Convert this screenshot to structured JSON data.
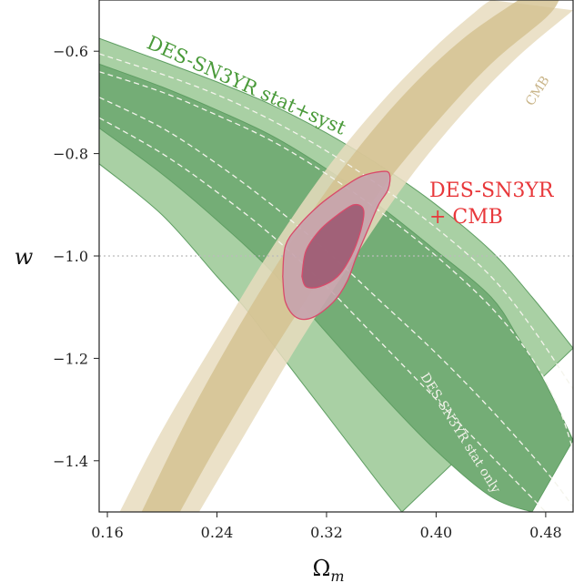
{
  "chart_data": {
    "type": "contour",
    "xlabel": "Ω",
    "xlabel_sub": "m",
    "ylabel": "w",
    "xlim": [
      0.154,
      0.5
    ],
    "ylim": [
      -1.5,
      -0.5
    ],
    "x_ticks": [
      0.16,
      0.24,
      0.32,
      0.4,
      0.48
    ],
    "x_tick_labels": [
      "0.16",
      "0.24",
      "0.32",
      "0.40",
      "0.48"
    ],
    "y_ticks": [
      -0.6,
      -0.8,
      -1.0,
      -1.2,
      -1.4
    ],
    "y_tick_labels": [
      "−0.6",
      "−0.8",
      "−1.0",
      "−1.2",
      "−1.4"
    ],
    "reference_line": {
      "y": -1.0,
      "style": "dotted",
      "color": "#bbbbbb"
    },
    "colors": {
      "sn_outer": "#a9d0a4",
      "sn_inner": "#74ad76",
      "sn_edge": "#5f9e63",
      "cmb_outer": "#e8dcbe",
      "cmb_inner": "#d3c18f",
      "combined_outer": "#c7a3ad",
      "combined_inner": "#9c5a72",
      "combined_edge": "#d94a6a",
      "dashed": "#f4f4ec"
    },
    "series": [
      {
        "name": "DES-SN3YR stat+syst",
        "kind": "band",
        "label_color": "#4a9a3a",
        "outer_upper": [
          [
            0.154,
            -0.575
          ],
          [
            0.2,
            -0.62
          ],
          [
            0.24,
            -0.66
          ],
          [
            0.28,
            -0.705
          ],
          [
            0.32,
            -0.76
          ],
          [
            0.36,
            -0.825
          ],
          [
            0.4,
            -0.9
          ],
          [
            0.44,
            -0.99
          ],
          [
            0.47,
            -1.08
          ],
          [
            0.5,
            -1.18
          ]
        ],
        "outer_lower": [
          [
            0.154,
            -0.82
          ],
          [
            0.2,
            -0.92
          ],
          [
            0.24,
            -1.04
          ],
          [
            0.26,
            -1.1
          ],
          [
            0.28,
            -1.17
          ],
          [
            0.3,
            -1.24
          ],
          [
            0.32,
            -1.31
          ],
          [
            0.34,
            -1.38
          ],
          [
            0.36,
            -1.45
          ],
          [
            0.375,
            -1.5
          ]
        ],
        "inner_upper": [
          [
            0.154,
            -0.625
          ],
          [
            0.2,
            -0.67
          ],
          [
            0.24,
            -0.715
          ],
          [
            0.28,
            -0.765
          ],
          [
            0.32,
            -0.83
          ],
          [
            0.36,
            -0.905
          ],
          [
            0.4,
            -0.99
          ],
          [
            0.44,
            -1.08
          ],
          [
            0.46,
            -1.16
          ],
          [
            0.48,
            -1.25
          ],
          [
            0.5,
            -1.36
          ]
        ],
        "inner_lower": [
          [
            0.154,
            -0.75
          ],
          [
            0.2,
            -0.84
          ],
          [
            0.24,
            -0.93
          ],
          [
            0.28,
            -1.03
          ],
          [
            0.32,
            -1.15
          ],
          [
            0.36,
            -1.27
          ],
          [
            0.4,
            -1.38
          ],
          [
            0.44,
            -1.47
          ],
          [
            0.47,
            -1.5
          ]
        ]
      },
      {
        "name": "DES-SN3YR stat only",
        "kind": "dashed",
        "label_color": "#f2f2ea",
        "outer_upper": [
          [
            0.154,
            -0.605
          ],
          [
            0.2,
            -0.645
          ],
          [
            0.24,
            -0.685
          ],
          [
            0.28,
            -0.735
          ],
          [
            0.32,
            -0.795
          ],
          [
            0.36,
            -0.865
          ],
          [
            0.4,
            -0.945
          ],
          [
            0.44,
            -1.04
          ],
          [
            0.47,
            -1.14
          ],
          [
            0.5,
            -1.26
          ]
        ],
        "outer_lower": [
          [
            0.154,
            -0.73
          ],
          [
            0.2,
            -0.8
          ],
          [
            0.24,
            -0.875
          ],
          [
            0.28,
            -0.96
          ],
          [
            0.32,
            -1.06
          ],
          [
            0.36,
            -1.17
          ],
          [
            0.4,
            -1.28
          ],
          [
            0.44,
            -1.39
          ],
          [
            0.48,
            -1.5
          ]
        ],
        "inner_upper": [
          [
            0.154,
            -0.64
          ],
          [
            0.2,
            -0.68
          ],
          [
            0.24,
            -0.725
          ],
          [
            0.28,
            -0.775
          ],
          [
            0.32,
            -0.84
          ],
          [
            0.36,
            -0.915
          ],
          [
            0.4,
            -1.0
          ],
          [
            0.44,
            -1.1
          ],
          [
            0.47,
            -1.2
          ],
          [
            0.49,
            -1.3
          ],
          [
            0.5,
            -1.38
          ]
        ],
        "inner_lower": [
          [
            0.154,
            -0.69
          ],
          [
            0.2,
            -0.75
          ],
          [
            0.24,
            -0.82
          ],
          [
            0.28,
            -0.9
          ],
          [
            0.32,
            -0.99
          ],
          [
            0.36,
            -1.09
          ],
          [
            0.4,
            -1.19
          ],
          [
            0.44,
            -1.3
          ],
          [
            0.48,
            -1.42
          ],
          [
            0.5,
            -1.49
          ]
        ]
      },
      {
        "name": "CMB",
        "kind": "band",
        "label_color": "#c9b589",
        "outer_left": [
          [
            0.169,
            -1.5
          ],
          [
            0.2,
            -1.34
          ],
          [
            0.24,
            -1.16
          ],
          [
            0.28,
            -0.985
          ],
          [
            0.32,
            -0.83
          ],
          [
            0.36,
            -0.7
          ],
          [
            0.4,
            -0.59
          ],
          [
            0.43,
            -0.52
          ],
          [
            0.44,
            -0.5
          ]
        ],
        "outer_right": [
          [
            0.227,
            -1.5
          ],
          [
            0.26,
            -1.35
          ],
          [
            0.3,
            -1.17
          ],
          [
            0.34,
            -1.005
          ],
          [
            0.38,
            -0.85
          ],
          [
            0.42,
            -0.72
          ],
          [
            0.46,
            -0.61
          ],
          [
            0.5,
            -0.52
          ]
        ],
        "inner_left": [
          [
            0.185,
            -1.5
          ],
          [
            0.22,
            -1.31
          ],
          [
            0.26,
            -1.12
          ],
          [
            0.3,
            -0.95
          ],
          [
            0.34,
            -0.8
          ],
          [
            0.38,
            -0.675
          ],
          [
            0.42,
            -0.575
          ],
          [
            0.46,
            -0.5
          ]
        ],
        "inner_right": [
          [
            0.213,
            -1.5
          ],
          [
            0.24,
            -1.37
          ],
          [
            0.28,
            -1.19
          ],
          [
            0.32,
            -1.025
          ],
          [
            0.36,
            -0.87
          ],
          [
            0.4,
            -0.74
          ],
          [
            0.44,
            -0.625
          ],
          [
            0.48,
            -0.535
          ],
          [
            0.49,
            -0.5
          ]
        ]
      },
      {
        "name": "DES-SN3YR + CMB",
        "label_lines": [
          "DES-SN3YR",
          "+ CMB"
        ],
        "kind": "blob",
        "label_color": "#e8383b",
        "outer": [
          [
            0.288,
            -1.04
          ],
          [
            0.29,
            -0.98
          ],
          [
            0.3,
            -0.94
          ],
          [
            0.315,
            -0.9
          ],
          [
            0.33,
            -0.87
          ],
          [
            0.345,
            -0.845
          ],
          [
            0.36,
            -0.835
          ],
          [
            0.366,
            -0.84
          ],
          [
            0.365,
            -0.87
          ],
          [
            0.358,
            -0.9
          ],
          [
            0.35,
            -0.95
          ],
          [
            0.342,
            -1.0
          ],
          [
            0.335,
            -1.05
          ],
          [
            0.325,
            -1.09
          ],
          [
            0.31,
            -1.12
          ],
          [
            0.298,
            -1.12
          ],
          [
            0.29,
            -1.09
          ]
        ],
        "inner": [
          [
            0.302,
            -1.04
          ],
          [
            0.305,
            -0.99
          ],
          [
            0.315,
            -0.95
          ],
          [
            0.328,
            -0.92
          ],
          [
            0.34,
            -0.9
          ],
          [
            0.347,
            -0.91
          ],
          [
            0.345,
            -0.95
          ],
          [
            0.338,
            -1.0
          ],
          [
            0.328,
            -1.04
          ],
          [
            0.315,
            -1.06
          ],
          [
            0.305,
            -1.06
          ]
        ]
      }
    ],
    "annotations": [
      {
        "text": "DES-SN3YR stat+syst",
        "color": "#4a9a3a"
      },
      {
        "text": "DES-SN3YR stat only",
        "color": "#f2f2ea"
      },
      {
        "text": "CMB",
        "color": "#c9b589"
      },
      {
        "text": "DES-SN3YR",
        "color": "#e8383b"
      },
      {
        "text": "+ CMB",
        "color": "#e8383b"
      }
    ]
  }
}
